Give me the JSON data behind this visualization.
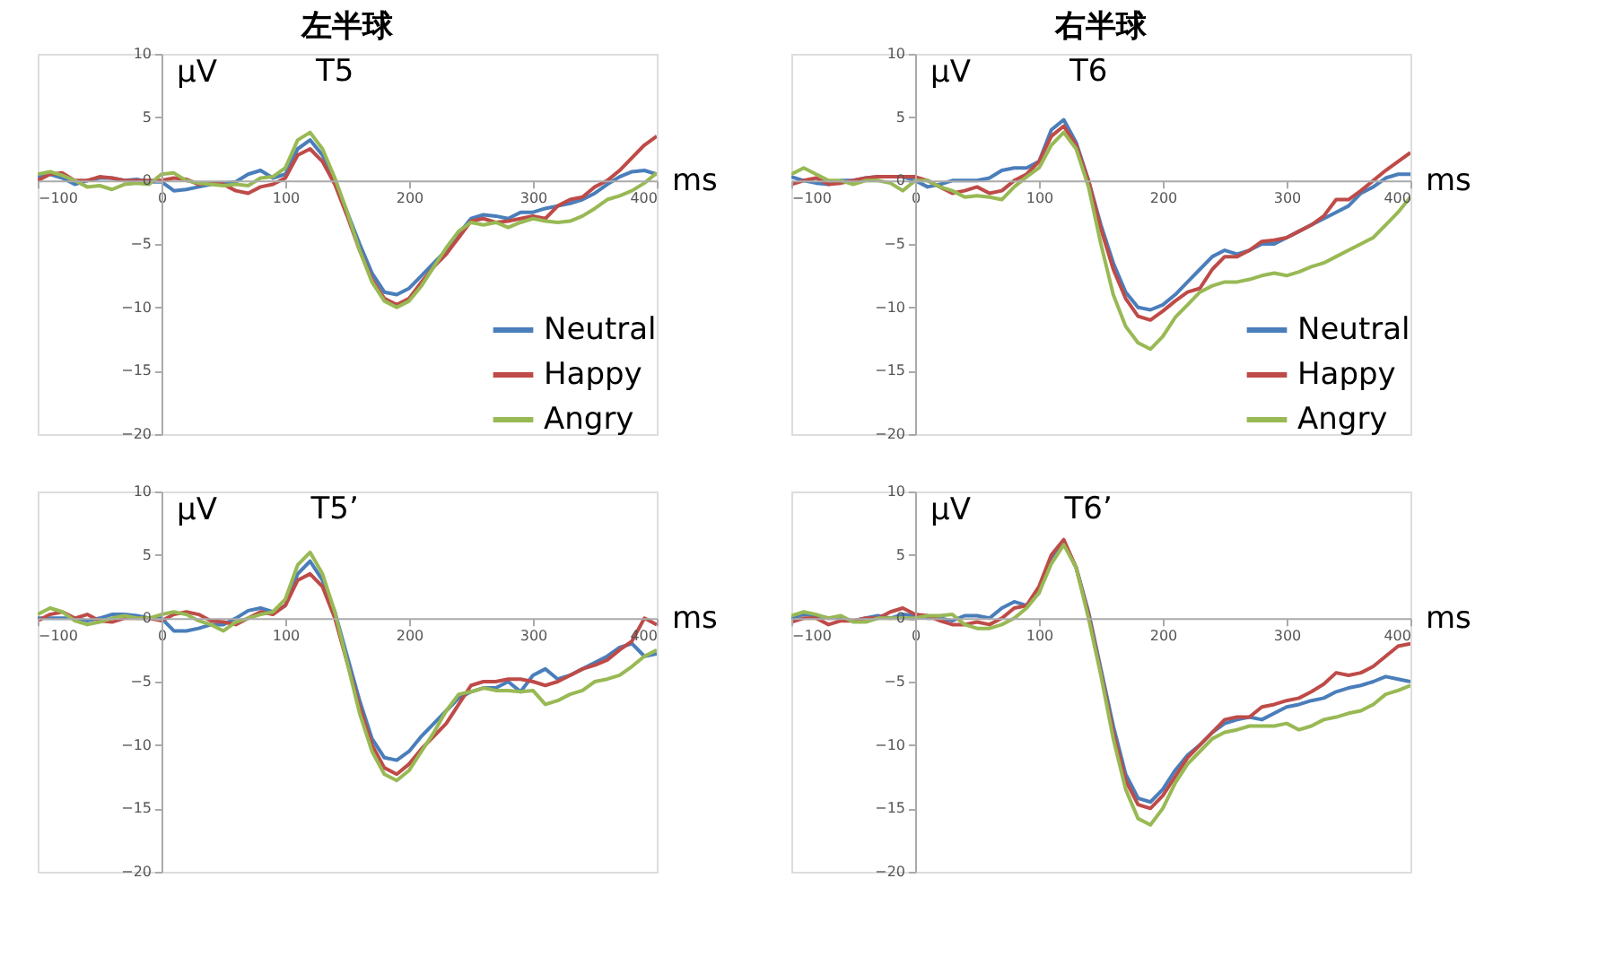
{
  "chart_data": [
    {
      "type": "line",
      "title": "左半球",
      "subtitle": "T5",
      "ylabel": "μV",
      "xlabel": "ms",
      "xlim": [
        -100,
        400
      ],
      "xticks": [
        -100,
        0,
        100,
        200,
        300,
        400
      ],
      "ylim": [
        -20,
        10
      ],
      "yticks": [
        -20,
        -15,
        -10,
        -5,
        0,
        5,
        10
      ],
      "grid": false,
      "legend": "bottom right",
      "marker": "none",
      "line_style": "solid",
      "x": [
        -100,
        -90,
        -80,
        -70,
        -60,
        -50,
        -40,
        -30,
        -20,
        -10,
        0,
        10,
        20,
        30,
        40,
        50,
        60,
        70,
        80,
        90,
        100,
        110,
        120,
        130,
        140,
        150,
        160,
        170,
        180,
        190,
        200,
        210,
        220,
        230,
        240,
        250,
        260,
        270,
        280,
        290,
        300,
        310,
        320,
        330,
        340,
        350,
        360,
        370,
        380,
        390,
        400
      ],
      "series": [
        {
          "name": "Neutral",
          "color": "#4a7ebb",
          "values": [
            0.3,
            0.5,
            0.2,
            -0.3,
            0,
            0.2,
            0.2,
            0,
            0.1,
            -0.1,
            -0.1,
            -0.8,
            -0.7,
            -0.5,
            -0.3,
            -0.2,
            -0.1,
            0.5,
            0.8,
            0.2,
            0.5,
            2.5,
            3.2,
            2,
            0,
            -2.5,
            -5,
            -7.3,
            -8.8,
            -9,
            -8.5,
            -7.5,
            -6.5,
            -5.5,
            -4.2,
            -3,
            -2.7,
            -2.8,
            -3,
            -2.5,
            -2.5,
            -2.2,
            -2,
            -1.8,
            -1.5,
            -1,
            -0.3,
            0.3,
            0.7,
            0.8,
            0.5
          ]
        },
        {
          "name": "Happy",
          "color": "#be4b48",
          "values": [
            0,
            0.5,
            0.6,
            0,
            0,
            0.3,
            0.2,
            0,
            0,
            0,
            0,
            0.2,
            0.1,
            -0.3,
            -0.2,
            -0.3,
            -0.8,
            -1,
            -0.5,
            -0.3,
            0.2,
            2,
            2.5,
            1.5,
            -0.3,
            -2.8,
            -5.5,
            -7.8,
            -9.3,
            -9.8,
            -9.3,
            -8,
            -6.8,
            -5.8,
            -4.5,
            -3.2,
            -3,
            -3.3,
            -3.2,
            -3,
            -2.8,
            -3,
            -2,
            -1.5,
            -1.3,
            -0.5,
            0,
            0.8,
            1.8,
            2.8,
            3.5
          ]
        },
        {
          "name": "Angry",
          "color": "#98b954",
          "values": [
            0.5,
            0.7,
            0.4,
            0,
            -0.5,
            -0.4,
            -0.7,
            -0.3,
            -0.2,
            -0.3,
            0.5,
            0.6,
            0,
            -0.2,
            -0.3,
            -0.4,
            -0.3,
            -0.4,
            0.2,
            0.3,
            1,
            3.2,
            3.8,
            2.5,
            0.2,
            -2.5,
            -5.5,
            -8,
            -9.5,
            -10,
            -9.5,
            -8.3,
            -6.8,
            -5.3,
            -4,
            -3.3,
            -3.5,
            -3.3,
            -3.7,
            -3.3,
            -3,
            -3.2,
            -3.3,
            -3.2,
            -2.8,
            -2.2,
            -1.5,
            -1.2,
            -0.8,
            -0.2,
            0.6
          ]
        }
      ]
    },
    {
      "type": "line",
      "title": "右半球",
      "subtitle": "T6",
      "ylabel": "μV",
      "xlabel": "ms",
      "xlim": [
        -100,
        400
      ],
      "xticks": [
        -100,
        0,
        100,
        200,
        300,
        400
      ],
      "ylim": [
        -20,
        10
      ],
      "yticks": [
        -20,
        -15,
        -10,
        -5,
        0,
        5,
        10
      ],
      "grid": false,
      "legend": "bottom right",
      "marker": "none",
      "line_style": "solid",
      "x": [
        -100,
        -90,
        -80,
        -70,
        -60,
        -50,
        -40,
        -30,
        -20,
        -10,
        0,
        10,
        20,
        30,
        40,
        50,
        60,
        70,
        80,
        90,
        100,
        110,
        120,
        130,
        140,
        150,
        160,
        170,
        180,
        190,
        200,
        210,
        220,
        230,
        240,
        250,
        260,
        270,
        280,
        290,
        300,
        310,
        320,
        330,
        340,
        350,
        360,
        370,
        380,
        390,
        400
      ],
      "series": [
        {
          "name": "Neutral",
          "color": "#4a7ebb",
          "values": [
            0.3,
            0,
            -0.2,
            -0.3,
            0,
            0,
            0.2,
            0.3,
            0.3,
            0.3,
            0,
            -0.5,
            -0.3,
            0,
            0,
            0,
            0.2,
            0.8,
            1,
            1,
            1.5,
            4,
            4.8,
            3,
            0,
            -3.5,
            -6.5,
            -8.8,
            -10,
            -10.2,
            -9.8,
            -9,
            -8,
            -7,
            -6,
            -5.5,
            -5.8,
            -5.5,
            -5,
            -5,
            -4.5,
            -4,
            -3.5,
            -3,
            -2.5,
            -2,
            -1,
            -0.5,
            0.2,
            0.5,
            0.5
          ]
        },
        {
          "name": "Happy",
          "color": "#be4b48",
          "values": [
            -0.3,
            0,
            0.2,
            -0.3,
            -0.2,
            0,
            0.2,
            0.3,
            0.3,
            0.3,
            0.3,
            0,
            -0.5,
            -1,
            -0.8,
            -0.5,
            -1,
            -0.8,
            0,
            0.5,
            1.5,
            3.5,
            4.3,
            2.8,
            0,
            -3.8,
            -7,
            -9.3,
            -10.7,
            -11,
            -10.3,
            -9.5,
            -8.8,
            -8.5,
            -7,
            -6,
            -6,
            -5.5,
            -4.8,
            -4.7,
            -4.5,
            -4,
            -3.5,
            -2.8,
            -1.5,
            -1.5,
            -0.8,
            0,
            0.8,
            1.5,
            2.2
          ]
        },
        {
          "name": "Angry",
          "color": "#98b954",
          "values": [
            0.5,
            1,
            0.5,
            0,
            0,
            -0.3,
            0,
            0,
            -0.2,
            -0.8,
            0,
            0,
            -0.5,
            -0.8,
            -1.3,
            -1.2,
            -1.3,
            -1.5,
            -0.5,
            0.3,
            1,
            2.8,
            3.8,
            2.5,
            -0.5,
            -5,
            -9,
            -11.5,
            -12.8,
            -13.3,
            -12.3,
            -10.8,
            -9.8,
            -8.8,
            -8.3,
            -8,
            -8,
            -7.8,
            -7.5,
            -7.3,
            -7.5,
            -7.2,
            -6.8,
            -6.5,
            -6,
            -5.5,
            -5,
            -4.5,
            -3.5,
            -2.5,
            -1.3
          ]
        }
      ]
    },
    {
      "type": "line",
      "subtitle": "T5’",
      "ylabel": "μV",
      "xlabel": "ms",
      "xlim": [
        -100,
        400
      ],
      "xticks": [
        -100,
        0,
        100,
        200,
        300,
        400
      ],
      "ylim": [
        -20,
        10
      ],
      "yticks": [
        -20,
        -15,
        -10,
        -5,
        0,
        5,
        10
      ],
      "grid": false,
      "marker": "none",
      "line_style": "solid",
      "x": [
        -100,
        -90,
        -80,
        -70,
        -60,
        -50,
        -40,
        -30,
        -20,
        -10,
        0,
        10,
        20,
        30,
        40,
        50,
        60,
        70,
        80,
        90,
        100,
        110,
        120,
        130,
        140,
        150,
        160,
        170,
        180,
        190,
        200,
        210,
        220,
        230,
        240,
        250,
        260,
        270,
        280,
        290,
        300,
        310,
        320,
        330,
        340,
        350,
        360,
        370,
        380,
        390,
        400
      ],
      "series": [
        {
          "color": "#4a7ebb",
          "values": [
            0,
            0,
            0,
            0,
            -0.2,
            0,
            0.3,
            0.3,
            0.2,
            0,
            0,
            -1,
            -1,
            -0.8,
            -0.5,
            -0.5,
            0,
            0.6,
            0.8,
            0.5,
            1,
            3.5,
            4.5,
            3,
            0.5,
            -3,
            -6.5,
            -9.5,
            -11,
            -11.2,
            -10.5,
            -9.3,
            -8.3,
            -7.3,
            -6.3,
            -5.8,
            -5.5,
            -5.5,
            -5,
            -5.8,
            -4.5,
            -4,
            -4.8,
            -4.5,
            -4,
            -3.5,
            -3,
            -2.3,
            -2,
            -3,
            -2.8
          ]
        },
        {
          "color": "#be4b48",
          "values": [
            -0.2,
            0.3,
            0.5,
            0,
            0.3,
            -0.2,
            -0.3,
            0,
            0,
            0,
            -0.2,
            0.3,
            0.5,
            0.3,
            -0.2,
            -0.3,
            -0.5,
            0,
            0.5,
            0.3,
            1,
            3,
            3.5,
            2.5,
            0,
            -3.5,
            -7,
            -10,
            -11.8,
            -12.3,
            -11.5,
            -10.3,
            -9.3,
            -8.3,
            -6.8,
            -5.3,
            -5,
            -5,
            -4.8,
            -4.8,
            -5,
            -5.3,
            -5,
            -4.5,
            -4,
            -3.7,
            -3.3,
            -2.5,
            -1.8,
            0,
            -0.5
          ]
        },
        {
          "color": "#98b954",
          "values": [
            0.3,
            0.8,
            0.5,
            -0.2,
            -0.5,
            -0.3,
            0,
            0.2,
            0,
            0,
            0.3,
            0.5,
            0.3,
            -0.2,
            -0.5,
            -1,
            -0.3,
            0,
            0.3,
            0.5,
            1.5,
            4.2,
            5.2,
            3.5,
            0.5,
            -3.5,
            -7.5,
            -10.5,
            -12.3,
            -12.8,
            -12,
            -10.5,
            -9,
            -7.3,
            -6,
            -5.8,
            -5.5,
            -5.7,
            -5.7,
            -5.8,
            -5.7,
            -6.8,
            -6.5,
            -6,
            -5.7,
            -5,
            -4.8,
            -4.5,
            -3.8,
            -3,
            -2.5
          ]
        }
      ]
    },
    {
      "type": "line",
      "subtitle": "T6’",
      "ylabel": "μV",
      "xlabel": "ms",
      "xlim": [
        -100,
        400
      ],
      "xticks": [
        -100,
        0,
        100,
        200,
        300,
        400
      ],
      "ylim": [
        -20,
        10
      ],
      "yticks": [
        -20,
        -15,
        -10,
        -5,
        0,
        5,
        10
      ],
      "grid": false,
      "marker": "none",
      "line_style": "solid",
      "x": [
        -100,
        -90,
        -80,
        -70,
        -60,
        -50,
        -40,
        -30,
        -20,
        -10,
        0,
        10,
        20,
        30,
        40,
        50,
        60,
        70,
        80,
        90,
        100,
        110,
        120,
        130,
        140,
        150,
        160,
        170,
        180,
        190,
        200,
        210,
        220,
        230,
        240,
        250,
        260,
        270,
        280,
        290,
        300,
        310,
        320,
        330,
        340,
        350,
        360,
        370,
        380,
        390,
        400
      ],
      "series": [
        {
          "color": "#4a7ebb",
          "values": [
            0,
            0.3,
            0.2,
            0,
            0,
            -0.2,
            0,
            0.2,
            0,
            0.3,
            0.2,
            0,
            0,
            -0.2,
            0.2,
            0.2,
            0,
            0.8,
            1.3,
            1,
            2,
            4.8,
            6,
            4,
            0.5,
            -4,
            -8.5,
            -12.3,
            -14.2,
            -14.5,
            -13.5,
            -12,
            -10.8,
            -10,
            -9,
            -8.3,
            -8,
            -7.8,
            -8,
            -7.5,
            -7,
            -6.8,
            -6.5,
            -6.3,
            -5.8,
            -5.5,
            -5.3,
            -5,
            -4.6,
            -4.8,
            -5
          ]
        },
        {
          "color": "#be4b48",
          "values": [
            -0.3,
            0,
            0,
            -0.5,
            -0.2,
            -0.2,
            0,
            0,
            0.5,
            0.8,
            0.3,
            0.2,
            -0.2,
            -0.5,
            -0.5,
            -0.3,
            -0.5,
            0,
            0.8,
            1,
            2.5,
            5,
            6.2,
            4,
            0.3,
            -4.3,
            -9,
            -12.8,
            -14.7,
            -15,
            -14,
            -12.5,
            -11,
            -10,
            -9,
            -8,
            -7.8,
            -7.8,
            -7,
            -6.8,
            -6.5,
            -6.3,
            -5.8,
            -5.2,
            -4.3,
            -4.5,
            -4.3,
            -3.8,
            -3,
            -2.2,
            -2
          ]
        },
        {
          "color": "#98b954",
          "values": [
            0.2,
            0.5,
            0.3,
            0,
            0.2,
            -0.3,
            -0.3,
            0,
            0,
            0,
            0,
            0.2,
            0.2,
            0.3,
            -0.5,
            -0.8,
            -0.8,
            -0.5,
            0,
            0.8,
            2,
            4.3,
            5.8,
            4,
            0,
            -4.5,
            -9.5,
            -13.5,
            -15.8,
            -16.3,
            -15,
            -13,
            -11.5,
            -10.5,
            -9.5,
            -9,
            -8.8,
            -8.5,
            -8.5,
            -8.5,
            -8.3,
            -8.8,
            -8.5,
            -8,
            -7.8,
            -7.5,
            -7.3,
            -6.8,
            -6,
            -5.7,
            -5.3
          ]
        }
      ]
    }
  ]
}
